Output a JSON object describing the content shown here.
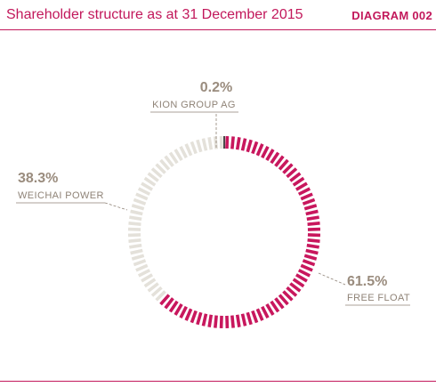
{
  "header": {
    "title": "Shareholder structure as at 31 December 2015",
    "diagram_label": "DIAGRAM 002"
  },
  "colors": {
    "accent": "#c2185b",
    "free_float": "#c8175d",
    "weichai": "#e4e1da",
    "kion": "#4a4a4a",
    "label_text": "#9a8c7e"
  },
  "chart_data": {
    "type": "pie",
    "style": "donut-segmented",
    "title": "Shareholder structure as at 31 December 2015",
    "slices": [
      {
        "name": "KION GROUP AG",
        "value": 0.2,
        "value_label": "0.2%"
      },
      {
        "name": "FREE FLOAT",
        "value": 61.5,
        "value_label": "61.5%"
      },
      {
        "name": "WEICHAI POWER",
        "value": 38.3,
        "value_label": "38.3%"
      }
    ]
  }
}
